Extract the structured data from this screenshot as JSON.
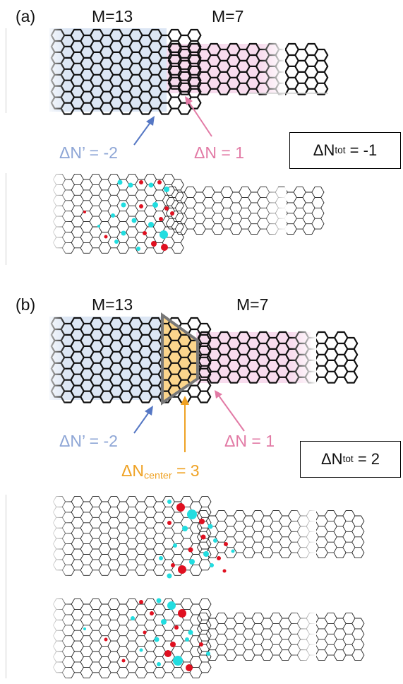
{
  "panel_a": {
    "label": "(a)",
    "m_left": "M=13",
    "m_right": "M=7",
    "dn_prime": {
      "prefix": "ΔN’ = ",
      "value": "-2"
    },
    "dn": {
      "prefix": "ΔN = ",
      "value": "1"
    },
    "dn_tot": {
      "symbol": "ΔN",
      "sub": "tot",
      "eq": " = -1"
    }
  },
  "panel_b": {
    "label": "(b)",
    "m_left": "M=13",
    "m_right": "M=7",
    "dn_prime": {
      "prefix": "ΔN’ = ",
      "value": "-2"
    },
    "dn": {
      "prefix": "ΔN = ",
      "value": "1"
    },
    "dn_center": {
      "symbol": "ΔN",
      "sub": "center",
      "eq": " = 3"
    },
    "dn_tot": {
      "symbol": "ΔN",
      "sub": "tot",
      "eq": " = 2"
    }
  },
  "colors": {
    "blue_region": "#dce6f4",
    "pink_region": "#f8dcee",
    "orange_region": "#fbd58c",
    "blue_text": "#8ea6d6",
    "pink_text": "#e27aa5",
    "orange_text": "#efa224",
    "red_dot": "#e01020",
    "cyan_dot": "#22dde0"
  }
}
